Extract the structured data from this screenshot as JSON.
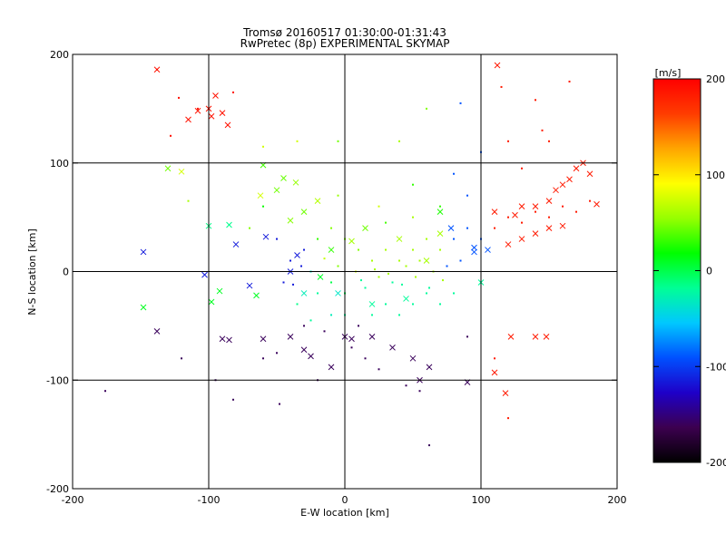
{
  "chart_data": {
    "type": "scatter",
    "title": "Tromsø 20160517 01:30:00-01:31:43",
    "subtitle": "RwPretec (8p) EXPERIMENTAL SKYMAP",
    "xlabel": "E-W location [km]",
    "ylabel": "N-S location [km]",
    "xlim": [
      -200,
      200
    ],
    "ylim": [
      -200,
      200
    ],
    "x_ticks": [
      "-200",
      "-100",
      "0",
      "100",
      "200"
    ],
    "y_ticks": [
      "-200",
      "-100",
      "0",
      "100",
      "200"
    ],
    "grid": true,
    "colorbar": {
      "unit": "[m/s]",
      "range": [
        -200,
        200
      ],
      "ticks": [
        "200",
        "100",
        "0",
        "-100",
        "-200"
      ],
      "colormap": [
        "#000000",
        "#3c004f",
        "#1e00c8",
        "#0050ff",
        "#00c8ff",
        "#00ff96",
        "#00ff00",
        "#96ff00",
        "#ffff00",
        "#ffa500",
        "#ff3c00",
        "#ff0000"
      ]
    },
    "series": [
      {
        "marker": "x",
        "points": [
          [
            -138,
            186
          ],
          [
            -95,
            162
          ],
          [
            -100,
            150
          ],
          [
            -108,
            148
          ],
          [
            -90,
            146
          ],
          [
            -115,
            140
          ],
          [
            -98,
            143
          ],
          [
            -86,
            135
          ],
          [
            -130,
            95
          ],
          [
            -120,
            92
          ],
          [
            -60,
            98
          ],
          [
            -45,
            86
          ],
          [
            -36,
            82
          ],
          [
            -50,
            75
          ],
          [
            -62,
            70
          ],
          [
            -30,
            55
          ],
          [
            -40,
            47
          ],
          [
            -100,
            42
          ],
          [
            -85,
            43
          ],
          [
            -80,
            25
          ],
          [
            -58,
            32
          ],
          [
            -103,
            -3
          ],
          [
            -92,
            -18
          ],
          [
            -70,
            -13
          ],
          [
            -65,
            -22
          ],
          [
            -98,
            -28
          ],
          [
            -148,
            18
          ],
          [
            -148,
            -33
          ],
          [
            -138,
            -55
          ],
          [
            -90,
            -62
          ],
          [
            -85,
            -63
          ],
          [
            -60,
            -62
          ],
          [
            -40,
            -60
          ],
          [
            -30,
            -72
          ],
          [
            -25,
            -78
          ],
          [
            -10,
            -88
          ],
          [
            5,
            -62
          ],
          [
            20,
            -60
          ],
          [
            35,
            -70
          ],
          [
            50,
            -80
          ],
          [
            55,
            -100
          ],
          [
            62,
            -88
          ],
          [
            90,
            -102
          ],
          [
            110,
            -93
          ],
          [
            118,
            -112
          ],
          [
            122,
            -60
          ],
          [
            148,
            -60
          ],
          [
            140,
            -60
          ],
          [
            100,
            -10
          ],
          [
            95,
            18
          ],
          [
            110,
            55
          ],
          [
            125,
            52
          ],
          [
            130,
            60
          ],
          [
            140,
            60
          ],
          [
            150,
            65
          ],
          [
            155,
            75
          ],
          [
            160,
            80
          ],
          [
            165,
            85
          ],
          [
            170,
            95
          ],
          [
            175,
            100
          ],
          [
            180,
            90
          ],
          [
            185,
            62
          ],
          [
            160,
            42
          ],
          [
            150,
            40
          ],
          [
            140,
            35
          ],
          [
            130,
            30
          ],
          [
            120,
            25
          ],
          [
            105,
            20
          ],
          [
            95,
            22
          ],
          [
            78,
            40
          ],
          [
            70,
            55
          ],
          [
            70,
            35
          ],
          [
            -20,
            65
          ],
          [
            -10,
            20
          ],
          [
            -5,
            -20
          ],
          [
            -30,
            -20
          ],
          [
            -18,
            -5
          ],
          [
            5,
            28
          ],
          [
            15,
            40
          ],
          [
            40,
            30
          ],
          [
            60,
            10
          ],
          [
            45,
            -25
          ],
          [
            20,
            -30
          ],
          [
            -40,
            0
          ],
          [
            -35,
            15
          ],
          [
            0,
            -60
          ],
          [
            112,
            190
          ]
        ]
      },
      {
        "marker": "dot",
        "points": [
          [
            -138,
            186
          ],
          [
            -122,
            160
          ],
          [
            -108,
            150
          ],
          [
            -82,
            165
          ],
          [
            -128,
            125
          ],
          [
            -115,
            65
          ],
          [
            -60,
            115
          ],
          [
            -35,
            120
          ],
          [
            -5,
            120
          ],
          [
            40,
            120
          ],
          [
            60,
            150
          ],
          [
            85,
            155
          ],
          [
            115,
            170
          ],
          [
            140,
            158
          ],
          [
            165,
            175
          ],
          [
            145,
            130
          ],
          [
            150,
            120
          ],
          [
            -120,
            -80
          ],
          [
            -95,
            -100
          ],
          [
            -60,
            -80
          ],
          [
            -50,
            -75
          ],
          [
            -30,
            -50
          ],
          [
            -10,
            -40
          ],
          [
            0,
            -40
          ],
          [
            10,
            -50
          ],
          [
            20,
            -40
          ],
          [
            30,
            -30
          ],
          [
            40,
            -40
          ],
          [
            50,
            -30
          ],
          [
            60,
            -20
          ],
          [
            70,
            -30
          ],
          [
            80,
            -20
          ],
          [
            -20,
            -20
          ],
          [
            -10,
            -10
          ],
          [
            0,
            -20
          ],
          [
            15,
            -15
          ],
          [
            25,
            -5
          ],
          [
            35,
            -10
          ],
          [
            45,
            5
          ],
          [
            55,
            10
          ],
          [
            65,
            0
          ],
          [
            75,
            5
          ],
          [
            85,
            10
          ],
          [
            -40,
            10
          ],
          [
            -30,
            20
          ],
          [
            -20,
            30
          ],
          [
            -10,
            40
          ],
          [
            0,
            30
          ],
          [
            10,
            20
          ],
          [
            20,
            10
          ],
          [
            30,
            20
          ],
          [
            40,
            10
          ],
          [
            50,
            20
          ],
          [
            60,
            30
          ],
          [
            70,
            20
          ],
          [
            80,
            30
          ],
          [
            90,
            40
          ],
          [
            100,
            30
          ],
          [
            110,
            40
          ],
          [
            120,
            50
          ],
          [
            130,
            45
          ],
          [
            140,
            55
          ],
          [
            150,
            50
          ],
          [
            160,
            60
          ],
          [
            170,
            55
          ],
          [
            180,
            65
          ],
          [
            -50,
            30
          ],
          [
            -45,
            -10
          ],
          [
            -35,
            -30
          ],
          [
            -25,
            -45
          ],
          [
            -15,
            -55
          ],
          [
            5,
            -70
          ],
          [
            15,
            -80
          ],
          [
            25,
            -90
          ],
          [
            45,
            -105
          ],
          [
            55,
            -110
          ],
          [
            62,
            -160
          ],
          [
            120,
            -135
          ],
          [
            -176,
            -110
          ],
          [
            -82,
            -118
          ],
          [
            -48,
            -122
          ],
          [
            -20,
            -100
          ],
          [
            90,
            -60
          ],
          [
            110,
            -80
          ],
          [
            -60,
            60
          ],
          [
            -70,
            40
          ],
          [
            -5,
            70
          ],
          [
            25,
            60
          ],
          [
            50,
            80
          ],
          [
            80,
            90
          ],
          [
            100,
            110
          ],
          [
            120,
            120
          ],
          [
            130,
            95
          ],
          [
            -25,
            0
          ],
          [
            -15,
            12
          ],
          [
            -5,
            5
          ],
          [
            8,
            0
          ],
          [
            12,
            -8
          ],
          [
            22,
            2
          ],
          [
            32,
            -2
          ],
          [
            42,
            -12
          ],
          [
            52,
            -5
          ],
          [
            62,
            -15
          ],
          [
            72,
            -8
          ],
          [
            -38,
            -12
          ],
          [
            -32,
            5
          ],
          [
            30,
            45
          ],
          [
            50,
            50
          ],
          [
            70,
            60
          ],
          [
            90,
            70
          ]
        ]
      }
    ]
  }
}
